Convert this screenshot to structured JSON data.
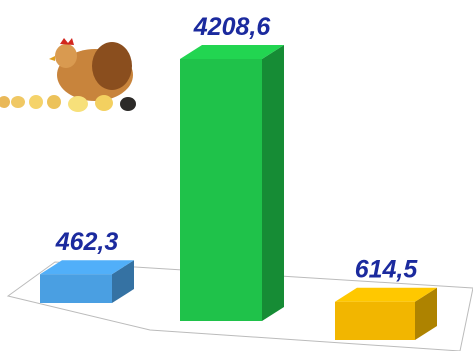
{
  "chart_data": {
    "type": "bar3d",
    "categories": [
      null,
      null,
      null
    ],
    "values": [
      462.3,
      4208.6,
      614.5
    ],
    "value_labels": [
      "462,3",
      "4208,6",
      "614,5"
    ],
    "colors": [
      "#4a9fe2",
      "#1fc24a",
      "#f2b600"
    ]
  }
}
